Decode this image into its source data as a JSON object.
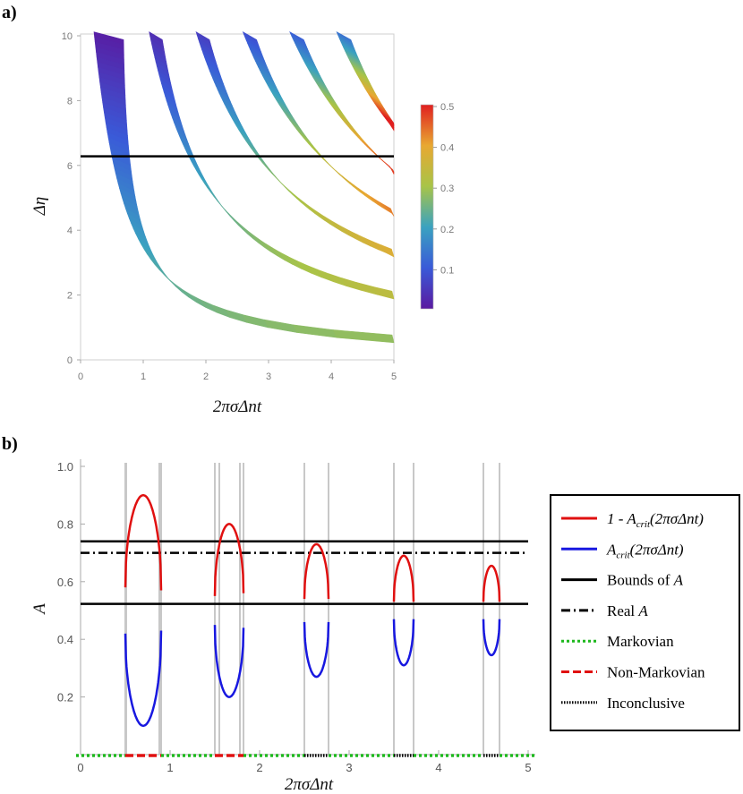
{
  "chart_data": [
    {
      "panel_label": "a)",
      "type": "heatmap",
      "xlabel": "2πσΔnt",
      "ylabel": "Δη",
      "xlim": [
        0,
        5
      ],
      "ylim": [
        0,
        10
      ],
      "xticks": [
        "0",
        "1",
        "2",
        "3",
        "4",
        "5"
      ],
      "yticks": [
        "0",
        "2",
        "4",
        "6",
        "8",
        "10"
      ],
      "bands": [
        {
          "n": 0,
          "x_at_top": 0.45,
          "x_at_right": 5.0,
          "y_at_right": 0.65
        },
        {
          "n": 1,
          "x_at_top": 1.2,
          "y_at_right": 2.0
        },
        {
          "n": 2,
          "x_at_top": 1.95,
          "y_at_right": 3.3
        },
        {
          "n": 3,
          "x_at_top": 2.7,
          "y_at_right": 4.55
        },
        {
          "n": 4,
          "x_at_top": 3.45,
          "y_at_right": 5.85
        },
        {
          "n": 5,
          "x_at_top": 4.2,
          "y_at_right": 7.2
        }
      ],
      "horizontal_line": {
        "y": 6.28,
        "x_range": [
          0,
          5
        ],
        "color": "#000000"
      },
      "colorbar": {
        "min": 0.0,
        "max": 0.5,
        "ticks": [
          "0.1",
          "0.2",
          "0.3",
          "0.4",
          "0.5"
        ],
        "palette": "rainbow"
      }
    },
    {
      "panel_label": "b)",
      "type": "line",
      "xlabel": "2πσΔnt",
      "ylabel": "A",
      "xlim": [
        0,
        5
      ],
      "ylim": [
        0,
        1
      ],
      "xticks": [
        "0",
        "1",
        "2",
        "3",
        "4",
        "5"
      ],
      "yticks": [
        "0.2",
        "0.4",
        "0.6",
        "0.8",
        "1.0"
      ],
      "arches": [
        {
          "x_start": 0.5,
          "x_end": 0.9,
          "upper_top": 0.9,
          "upper_base_left": 0.58,
          "upper_base_right": 0.57,
          "lower_bottom": 0.1,
          "lower_base_left": 0.42,
          "lower_base_right": 0.43
        },
        {
          "x_start": 1.5,
          "x_end": 1.82,
          "upper_top": 0.8,
          "upper_base_left": 0.55,
          "upper_base_right": 0.56,
          "lower_bottom": 0.2,
          "lower_base_left": 0.45,
          "lower_base_right": 0.44
        },
        {
          "x_start": 2.5,
          "x_end": 2.77,
          "upper_top": 0.73,
          "upper_base_left": 0.54,
          "upper_base_right": 0.54,
          "lower_bottom": 0.27,
          "lower_base_left": 0.46,
          "lower_base_right": 0.46
        },
        {
          "x_start": 3.5,
          "x_end": 3.72,
          "upper_top": 0.69,
          "upper_base_left": 0.53,
          "upper_base_right": 0.53,
          "lower_bottom": 0.31,
          "lower_base_left": 0.47,
          "lower_base_right": 0.47
        },
        {
          "x_start": 4.5,
          "x_end": 4.68,
          "upper_top": 0.655,
          "upper_base_left": 0.53,
          "upper_base_right": 0.53,
          "lower_bottom": 0.345,
          "lower_base_left": 0.47,
          "lower_base_right": 0.47
        }
      ],
      "gray_vertical_lines": [
        0.5,
        0.51,
        0.88,
        0.9,
        1.5,
        1.55,
        1.78,
        1.82,
        2.5,
        2.77,
        3.5,
        3.72,
        4.5,
        4.68
      ],
      "hlines": [
        {
          "name": "Bounds of A (upper)",
          "y": 0.74,
          "style": "solid"
        },
        {
          "name": "Real A",
          "y": 0.7,
          "style": "dashdot"
        },
        {
          "name": "Bounds of A (lower)",
          "y": 0.523,
          "style": "solid"
        }
      ],
      "baseline_segments": [
        {
          "type": "Markovian",
          "x": [
            -0.05,
            0.5
          ]
        },
        {
          "type": "Non-Markovian",
          "x": [
            0.5,
            0.9
          ]
        },
        {
          "type": "Markovian",
          "x": [
            0.9,
            1.5
          ]
        },
        {
          "type": "Non-Markovian",
          "x": [
            1.5,
            1.82
          ]
        },
        {
          "type": "Markovian",
          "x": [
            1.82,
            2.5
          ]
        },
        {
          "type": "Inconclusive",
          "x": [
            2.5,
            2.77
          ]
        },
        {
          "type": "Markovian",
          "x": [
            2.77,
            3.5
          ]
        },
        {
          "type": "Inconclusive",
          "x": [
            3.5,
            3.72
          ]
        },
        {
          "type": "Markovian",
          "x": [
            3.72,
            4.5
          ]
        },
        {
          "type": "Inconclusive",
          "x": [
            4.5,
            4.68
          ]
        },
        {
          "type": "Markovian",
          "x": [
            4.68,
            5.1
          ]
        }
      ],
      "legend": {
        "placement": "right",
        "entries": [
          {
            "label": "1 - A",
            "sub": "crit",
            "arg": "(2πσΔnt)",
            "color": "#e01010",
            "style": "solid"
          },
          {
            "label": "A",
            "sub": "crit",
            "arg": "(2πσΔnt)",
            "color": "#1818e0",
            "style": "solid"
          },
          {
            "label": "Bounds of ",
            "italic": "A",
            "color": "#000000",
            "style": "solid"
          },
          {
            "label": "Real ",
            "italic": "A",
            "color": "#000000",
            "style": "dashdot"
          },
          {
            "label": "Markovian",
            "color": "#1db81d",
            "style": "dotted"
          },
          {
            "label": "Non-Markovian",
            "color": "#e01010",
            "style": "dashed"
          },
          {
            "label": "Inconclusive",
            "color": "#000000",
            "style": "dense-dotted"
          }
        ]
      }
    }
  ]
}
